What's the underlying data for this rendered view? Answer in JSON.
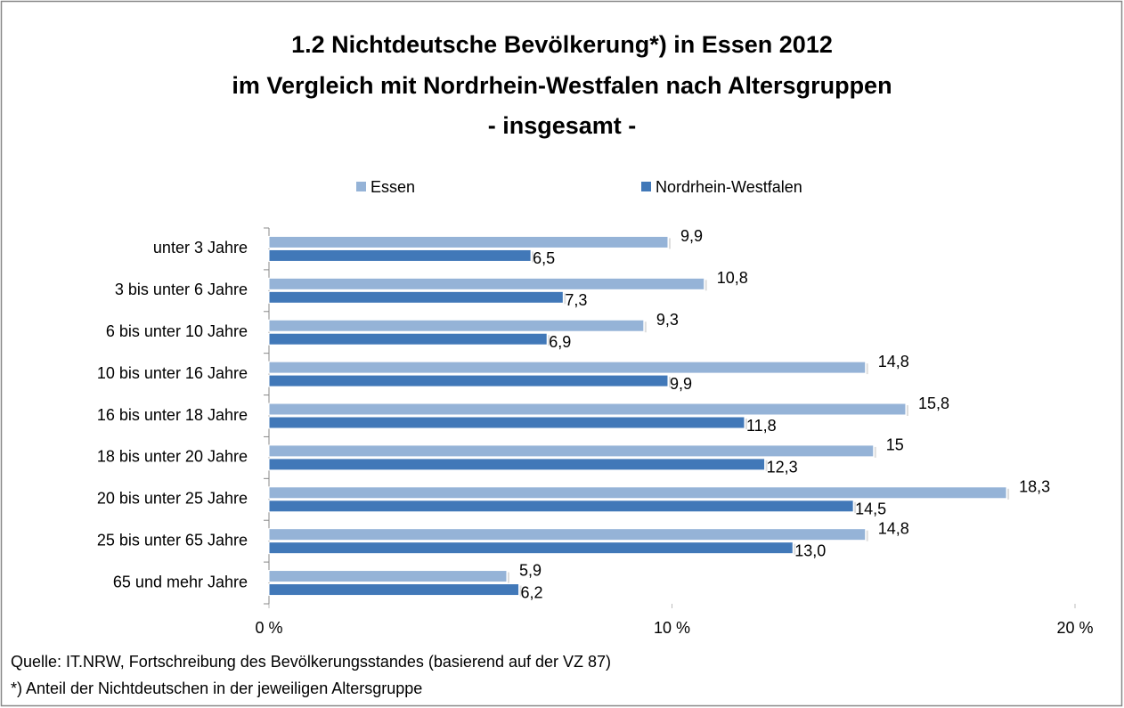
{
  "chart_data": {
    "type": "hbar",
    "title": [
      "1.2 Nichtdeutsche Bevölkerung*) in Essen 2012",
      "im Vergleich mit Nordrhein-Westfalen nach Altersgruppen",
      "- insgesamt -"
    ],
    "categories": [
      "unter 3 Jahre",
      "3 bis unter 6 Jahre",
      "6 bis unter 10 Jahre",
      "10 bis unter 16 Jahre",
      "16 bis unter 18 Jahre",
      "18 bis unter 20 Jahre",
      "20 bis unter 25 Jahre",
      "25 bis unter 65 Jahre",
      "65 und mehr Jahre"
    ],
    "series": [
      {
        "name": "Essen",
        "color": "#95b3d7",
        "values": [
          9.9,
          10.8,
          9.3,
          14.8,
          15.8,
          15,
          18.3,
          14.8,
          5.9
        ],
        "value_labels": [
          "9,9",
          "10,8",
          "9,3",
          "14,8",
          "15,8",
          "15",
          "18,3",
          "14,8",
          "5,9"
        ]
      },
      {
        "name": "Nordrhein-Westfalen",
        "color": "#4178b8",
        "values": [
          6.5,
          7.3,
          6.9,
          9.9,
          11.8,
          12.3,
          14.5,
          13.0,
          6.2
        ],
        "value_labels": [
          "6,5",
          "7,3",
          "6,9",
          "9,9",
          "11,8",
          "12,3",
          "14,5",
          "13,0",
          "6,2"
        ]
      }
    ],
    "xlim": [
      0,
      20
    ],
    "xticks": [
      {
        "value": 0,
        "label": "0 %"
      },
      {
        "value": 10,
        "label": "10 %"
      },
      {
        "value": 20,
        "label": "20 %"
      }
    ],
    "legend": "top",
    "source": "Quelle: IT.NRW, Fortschreibung des Bevölkerungsstandes (basierend auf der VZ 87)",
    "footnote": "*) Anteil der Nichtdeutschen in der jeweiligen Altersgruppe"
  }
}
